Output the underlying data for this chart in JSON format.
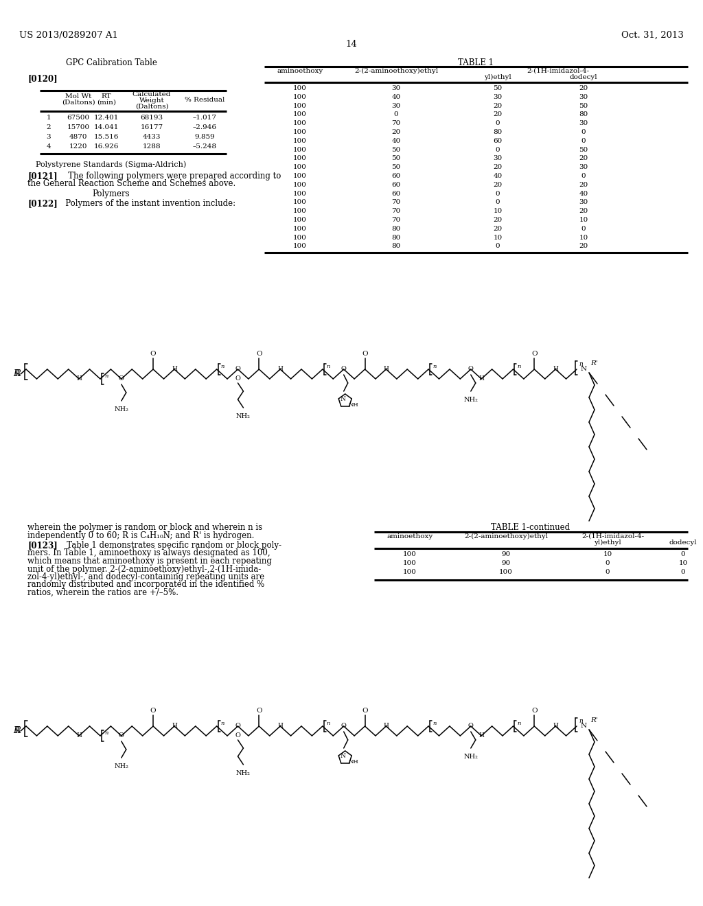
{
  "header_left": "US 2013/0289207 A1",
  "header_right": "Oct. 31, 2013",
  "page_number": "14",
  "gpc_title": "GPC Calibration Table",
  "para0120": "[0120]",
  "gpc_rows": [
    [
      "1",
      "67500",
      "12.401",
      "68193",
      "–1.017"
    ],
    [
      "2",
      "15700",
      "14.041",
      "16177",
      "–2.946"
    ],
    [
      "3",
      "4870",
      "15.516",
      "4433",
      "9.859"
    ],
    [
      "4",
      "1220",
      "16.926",
      "1288",
      "–5.248"
    ]
  ],
  "gpc_footnote": "Polystyrene Standards (Sigma-Aldrich)",
  "para0121_bold": "[0121]",
  "para0121_lines": [
    "   The following polymers were prepared according to",
    "the General Reaction Scheme and Schemes above."
  ],
  "polymers_heading": "Polymers",
  "para0122_bold": "[0122]",
  "para0122_text": "   Polymers of the instant invention include:",
  "table1_title": "TABLE 1",
  "table1_super": "2-(1H-imidazol-4-",
  "table1_headers": [
    "aminoethoxy",
    "2-(2-aminoethoxy)ethyl",
    "yl)ethyl",
    "dodecyl"
  ],
  "table1_rows": [
    [
      100,
      30,
      50,
      20
    ],
    [
      100,
      40,
      30,
      30
    ],
    [
      100,
      30,
      20,
      50
    ],
    [
      100,
      0,
      20,
      80
    ],
    [
      100,
      70,
      0,
      30
    ],
    [
      100,
      20,
      80,
      0
    ],
    [
      100,
      40,
      60,
      0
    ],
    [
      100,
      50,
      0,
      50
    ],
    [
      100,
      50,
      30,
      20
    ],
    [
      100,
      50,
      20,
      30
    ],
    [
      100,
      60,
      40,
      0
    ],
    [
      100,
      60,
      20,
      20
    ],
    [
      100,
      60,
      0,
      40
    ],
    [
      100,
      70,
      0,
      30
    ],
    [
      100,
      70,
      10,
      20
    ],
    [
      100,
      70,
      20,
      10
    ],
    [
      100,
      80,
      20,
      0
    ],
    [
      100,
      80,
      10,
      10
    ],
    [
      100,
      80,
      0,
      20
    ]
  ],
  "table1cont_title": "TABLE 1-continued",
  "table1cont_rows": [
    [
      100,
      90,
      10,
      0
    ],
    [
      100,
      90,
      0,
      10
    ],
    [
      100,
      100,
      0,
      0
    ]
  ],
  "wherein_lines": [
    "wherein the polymer is random or block and wherein n is",
    "independently 0 to 60; R is C₄H₁₀N; and R' is hydrogen."
  ],
  "para0123_bold": "[0123]",
  "para0123_lines": [
    "   Table 1 demonstrates specific random or block poly-",
    "mers. In Table 1, aminoethoxy is always designated as 100,",
    "which means that aminoethoxy is present in each repeating",
    "unit of the polymer. 2-(2-aminoethoxy)ethyl-,2-(1H-imida-",
    "zol-4-yl)ethyl-, and dodecyl-containing repeating units are",
    "randomly distributed and incorporated in the identified %",
    "ratios, wherein the ratios are +/–5%."
  ]
}
